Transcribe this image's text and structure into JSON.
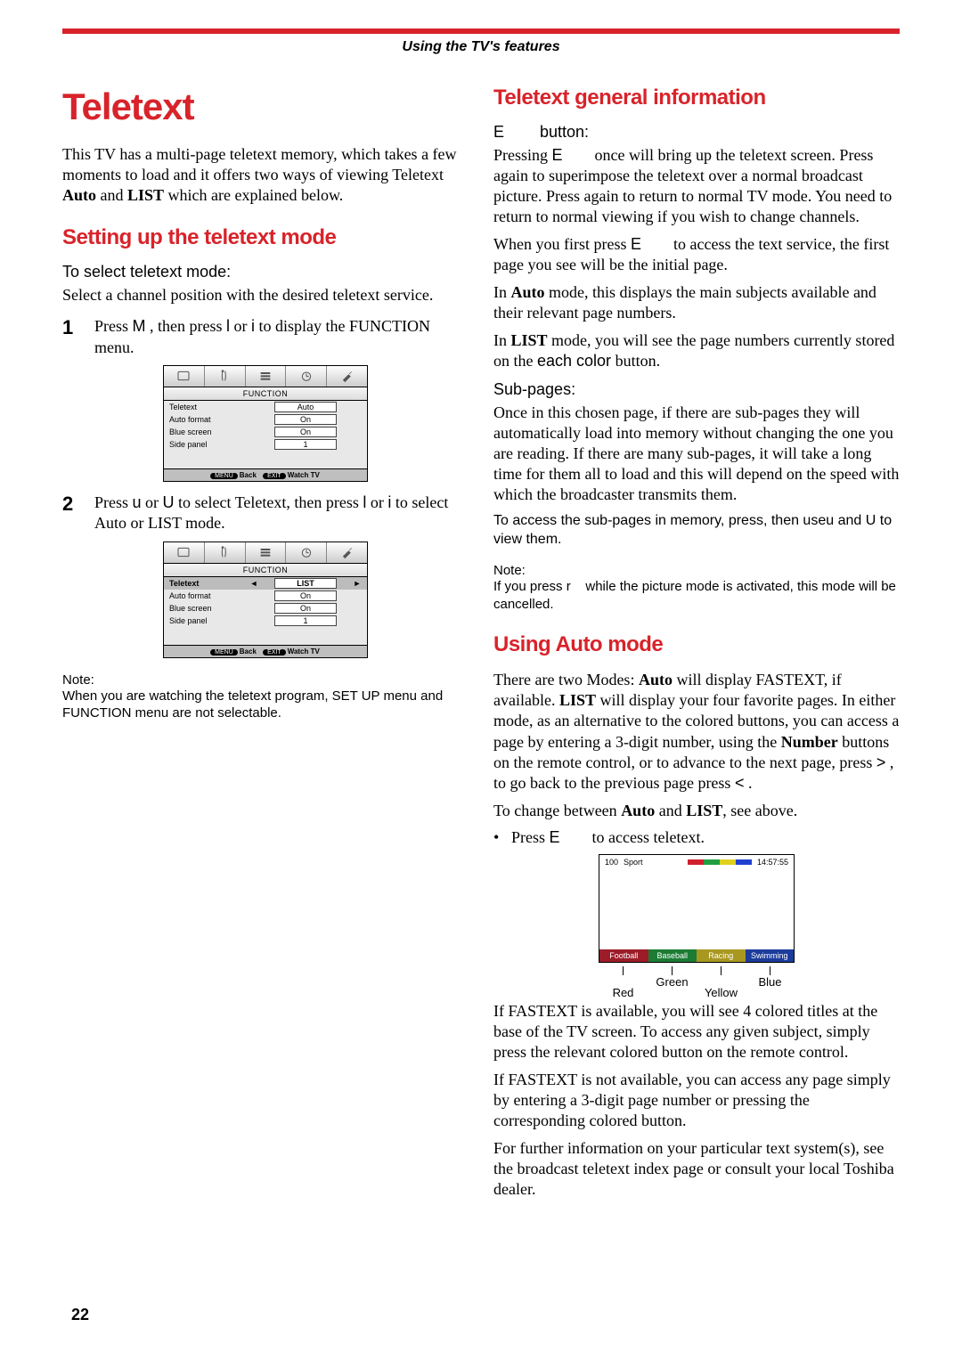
{
  "header": {
    "banner": "Using the TV's features"
  },
  "left": {
    "title": "Teletext",
    "intro_line1": "This TV has a multi-page teletext memory, which takes a few moments to load and it offers two ways of viewing Teletext ",
    "intro_auto": "Auto",
    "intro_and": " and ",
    "intro_list": "LIST",
    "intro_tail": " which are explained below.",
    "sub1": "Setting up the teletext mode",
    "h3_select": "To select teletext mode:",
    "select_body": "Select a channel position with the desired teletext service.",
    "step1_num": "1",
    "step1_a": "Press ",
    "step1_m": "M",
    "step1_b": " , then press ",
    "step1_l": "l",
    "step1_c": " or ",
    "step1_i": "i",
    "step1_d": " to display the ",
    "step1_func": "FUNCTION",
    "step1_e": " menu.",
    "step2_num": "2",
    "step2_a": "Press ",
    "step2_u1": "u",
    "step2_b": " or ",
    "step2_u2": "U",
    "step2_c": " to select ",
    "step2_ttx": "Teletext",
    "step2_d": ", then press ",
    "step2_l": "l",
    "step2_e": " or ",
    "step2_i": "i",
    "step2_f": " to select ",
    "step2_auto": "Auto",
    "step2_g": " or ",
    "step2_list": "LIST",
    "step2_h": " mode.",
    "note_label": "Note:",
    "note_body": "When you are watching the teletext program, SET UP menu and FUNCTION menu are not selectable."
  },
  "osd": {
    "title": "FUNCTION",
    "rows": [
      {
        "label": "Teletext",
        "value": "Auto"
      },
      {
        "label": "Auto format",
        "value": "On"
      },
      {
        "label": "Blue screen",
        "value": "On"
      },
      {
        "label": "Side panel",
        "value": "1"
      }
    ],
    "rows2": [
      {
        "label": "Teletext",
        "value": "LIST",
        "sel": true,
        "arrows": true
      },
      {
        "label": "Auto format",
        "value": "On"
      },
      {
        "label": "Blue screen",
        "value": "On"
      },
      {
        "label": "Side panel",
        "value": "1"
      }
    ],
    "footer_menu": "MENU",
    "footer_back": "Back",
    "footer_exit": "EXIT",
    "footer_watch": "Watch TV"
  },
  "right": {
    "sub1": "Teletext general information",
    "h3_e": "E        button:",
    "p1a": "Pressing ",
    "p1E": "E",
    "p1b": "        once will bring up the teletext screen. Press again to superimpose the teletext over a normal broadcast picture. Press again to return to normal TV mode. You need to return to normal viewing if you wish to change channels.",
    "p2a": "When you first press ",
    "p2E": "E",
    "p2b": "        to access the text service, the first page you see will be the initial page.",
    "p3a": "In ",
    "p3auto": "Auto",
    "p3b": " mode, this displays the main subjects available and their relevant page numbers.",
    "p4a": "In ",
    "p4list": "LIST",
    "p4b": " mode, you will see the page numbers currently stored on the ",
    "p4each": "each color",
    "p4c": " button.",
    "h3_sub": "Sub-pages:",
    "p5": "Once in this chosen page, if there are sub-pages they will automatically load into memory without changing the one you are reading. If there are many sub-pages, it will take a long time for them all to load and this will depend on the speed with which the broadcaster transmits them.",
    "p6a": "To access the sub-pages in memory, pre",
    "p6s": "ss",
    "p6b": ", then use",
    "p6u": "u",
    "p6c": " and ",
    "p6U": "U",
    "p6d": " to view them",
    "note_label": "Note:",
    "note_body_a": "If you press ",
    "note_r": "r",
    "note_body_b": "    while the picture mode is activated, this mode will be cancelled.",
    "sub2": "Using Auto mode",
    "p7a": "There are two Modes: ",
    "p7auto": "Auto",
    "p7b": " will display FASTEXT, if available. ",
    "p7list": "LIST",
    "p7c": " will display your four favorite pages. In either mode, as an alternative to the colored buttons, you can access a page by entering a 3-digit number, using the ",
    "p7num": "Number",
    "p7d": " buttons on the remote control, or to advance to the next page, press ",
    "p7gt": ">",
    "p7e": "  , to go back to the previous page press ",
    "p7lt": "<",
    "p7f": "  .",
    "p8a": "To change between ",
    "p8auto": "Auto",
    "p8b": " and ",
    "p8list": "LIST",
    "p8c": ", see above.",
    "bul_a": "Press ",
    "bul_E": "E",
    "bul_b": "        to access teletext.",
    "p9": "If FASTEXT is available, you will see 4 colored titles at the base of the TV screen. To access any given subject, simply press the relevant colored button on the remote control.",
    "p10": "If FASTEXT is not available, you can access any page simply by entering a 3-digit page number or pressing the corresponding colored button.",
    "p11": "For further information on your particular text system(s), see the broadcast teletext index page or consult your local Toshiba dealer."
  },
  "ttx": {
    "num": "100",
    "cat": "Sport",
    "time": "14:57:55",
    "bars": [
      "#d02030",
      "#20a040",
      "#e0d020",
      "#2040d0"
    ],
    "bottom": [
      {
        "label": "Football",
        "color": "#9c1c28"
      },
      {
        "label": "Baseball",
        "color": "#1c7c34"
      },
      {
        "label": "Racing",
        "color": "#a89820"
      },
      {
        "label": "Swimming",
        "color": "#1c3c9c"
      }
    ],
    "under": [
      "Red",
      "Green",
      "Yellow",
      "Blue"
    ]
  },
  "footer": {
    "page": "22"
  }
}
